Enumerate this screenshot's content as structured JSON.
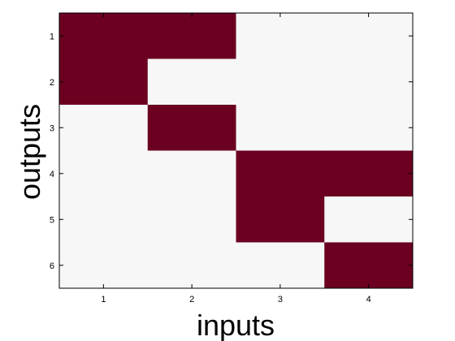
{
  "chart_data": {
    "type": "heatmap",
    "title": "",
    "xlabel": "inputs",
    "ylabel": "outputs",
    "x_categories": [
      "1",
      "2",
      "3",
      "4"
    ],
    "y_categories": [
      "1",
      "2",
      "3",
      "4",
      "5",
      "6"
    ],
    "values": [
      [
        1,
        1,
        0,
        0
      ],
      [
        1,
        0,
        0,
        0
      ],
      [
        0,
        1,
        0,
        0
      ],
      [
        0,
        0,
        1,
        1
      ],
      [
        0,
        0,
        1,
        0
      ],
      [
        0,
        0,
        0,
        1
      ]
    ],
    "colors": {
      "on": "#6b0020",
      "off": "#f7f7f7",
      "axis": "#000000"
    },
    "grid": false,
    "legend": "none"
  }
}
